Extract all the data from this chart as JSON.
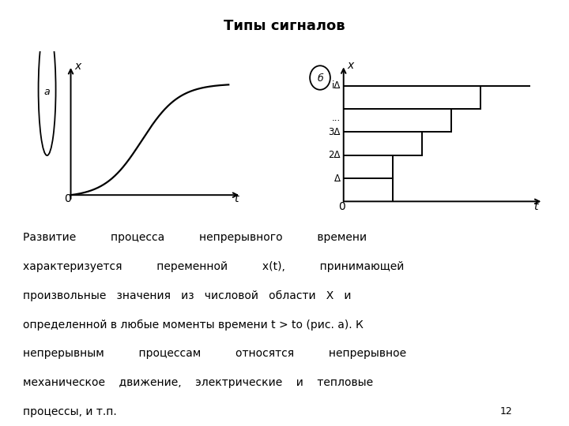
{
  "title": "Типы сигналов",
  "title_fontsize": 13,
  "background_color": "#ffffff",
  "text_color": "#000000",
  "label_a": "а",
  "label_b": "б",
  "xlabel_a": "t",
  "ylabel_a": "x",
  "xlabel_b": "t",
  "ylabel_b": "x",
  "zero_label": "0",
  "ytick_labels_b": [
    "Δ",
    "2Δ",
    "3Δ",
    "...",
    "iΔ"
  ],
  "ytick_positions_b": [
    1,
    2,
    3,
    4,
    5
  ],
  "staircase_t_ends": [
    2.5,
    4.0,
    5.5,
    7.0,
    9.5
  ],
  "staircase_levels": [
    1,
    2,
    3,
    4,
    5
  ],
  "body_text": "Развитие          процесса          непрерывного          времени\nхарактеризуется          переменной          x(t),          принимающей\nпроизвольные   значения   из   числовой   области   X   и\nопределенной в любые моменты времени t > to (рис. а). К\nнепрерывным          процессам          относятся          непрерывное\nмеханическое    движение,    электрические    и    тепловые\nпроцессы, и т.п.",
  "page_number": "12"
}
